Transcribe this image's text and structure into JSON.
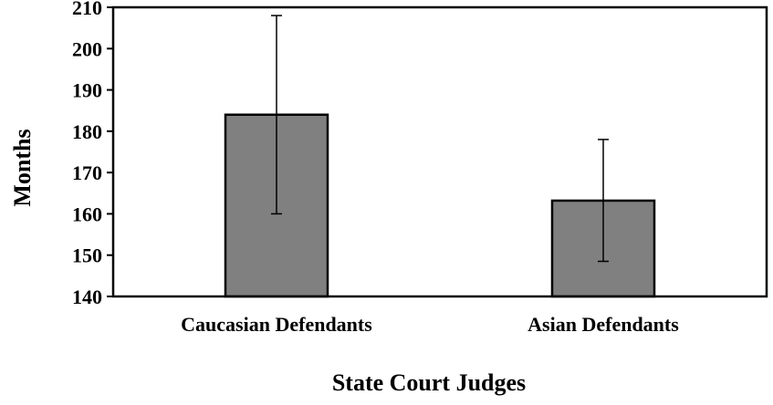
{
  "chart_data": {
    "type": "bar",
    "title": "",
    "xlabel": "State Court Judges",
    "ylabel": "Months",
    "categories": [
      "Caucasian Defendants",
      "Asian Defendants"
    ],
    "series": [
      {
        "values": [
          184,
          163.2
        ],
        "error_low": [
          160,
          148.5
        ],
        "error_high": [
          208,
          178
        ]
      }
    ],
    "ylim": [
      140,
      210
    ],
    "yticks": [
      140,
      150,
      160,
      170,
      180,
      190,
      200,
      210
    ],
    "grid": false,
    "legend": "none",
    "colors": {
      "bar_fill": "#808080",
      "bar_stroke": "#000000",
      "axis": "#000000",
      "error_bar": "#000000"
    }
  }
}
